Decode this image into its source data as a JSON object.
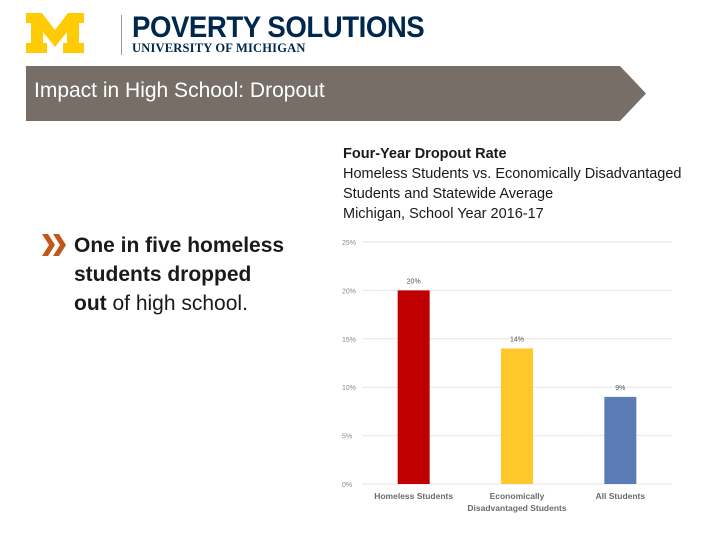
{
  "header": {
    "logo_name": "block-m-logo",
    "org_title": "POVERTY SOLUTIONS",
    "org_subtitle": "UNIVERSITY OF MICHIGAN",
    "colors": {
      "maize": "#ffcb05",
      "blue": "#00274c"
    }
  },
  "banner": {
    "title": "Impact in High School: Dropout",
    "color": "#776f67"
  },
  "bullet": {
    "icon": "double-chevron-right-icon",
    "color": "#c2571a",
    "text_bold_1": "One in five homeless students dropped",
    "text_bold_2": "out",
    "text_rest": " of high school."
  },
  "chart_heading": {
    "line1": "Four-Year Dropout Rate",
    "line2": "Homeless Students vs. Economically Disadvantaged",
    "line3": "Students and Statewide Average",
    "line4": "Michigan, School Year 2016-17"
  },
  "chart_data": {
    "type": "bar",
    "categories": [
      "Homeless Students",
      "Economically Disadvantaged Students",
      "All Students"
    ],
    "values": [
      20,
      14,
      9
    ],
    "data_labels": [
      "20%",
      "14%",
      "9%"
    ],
    "colors": [
      "#c00000",
      "#ffc72c",
      "#5b7bb4"
    ],
    "yticks": [
      "25%",
      "20%",
      "15%",
      "10%",
      "5%",
      "0%"
    ],
    "ylim": [
      0,
      25
    ],
    "grid": true,
    "legend": "none"
  }
}
